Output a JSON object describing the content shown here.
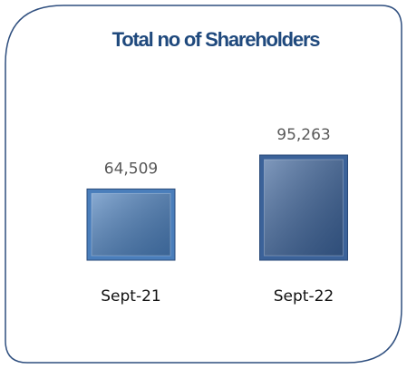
{
  "chart_data": {
    "type": "bar",
    "title": "Total no of Shareholders",
    "categories": [
      "Sept-21",
      "Sept-22"
    ],
    "values": [
      64509,
      95263
    ],
    "value_labels": [
      "64,509",
      "95,263"
    ],
    "colors": [
      "#4a7ebb",
      "#3b6299"
    ]
  }
}
